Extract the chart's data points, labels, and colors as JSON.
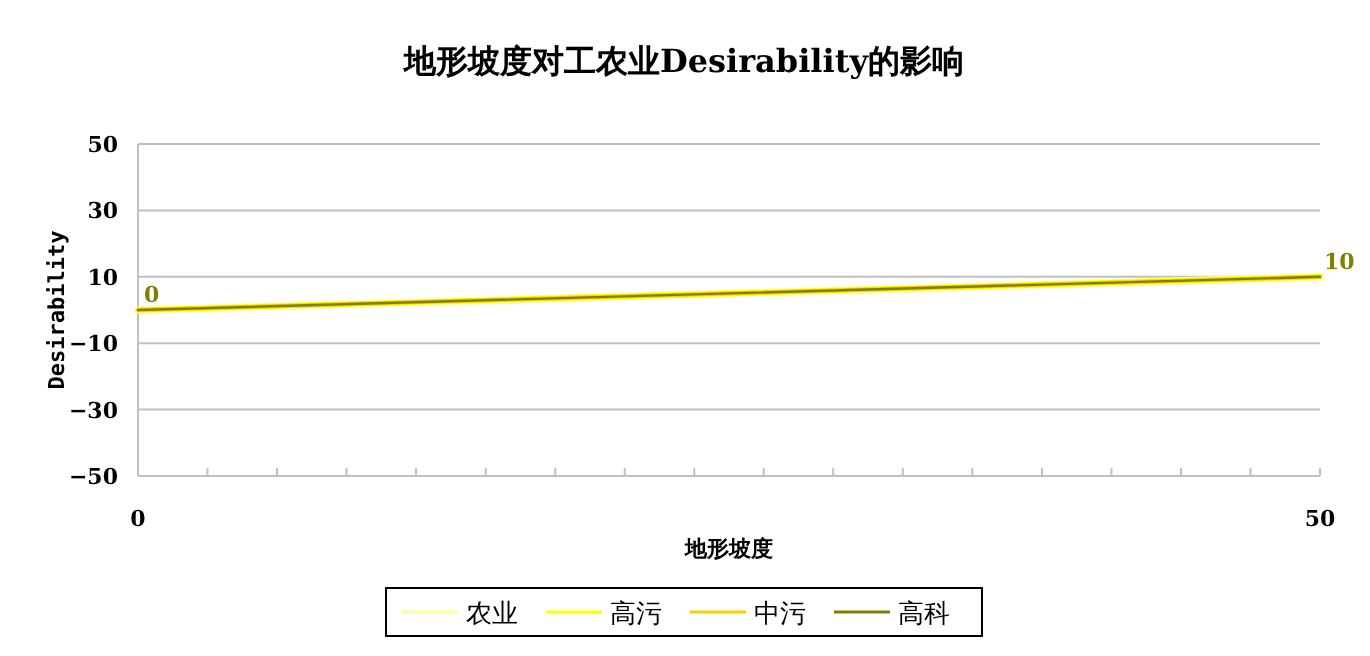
{
  "chart_data": {
    "type": "line",
    "title": "地形坡度对工农业Desirability的影响",
    "xlabel": "地形坡度",
    "ylabel": "Desirability",
    "x": [
      0,
      50
    ],
    "xlim": [
      0,
      50
    ],
    "ylim": [
      -50,
      50
    ],
    "xticks": [
      0,
      {
        "value": 2.94,
        "label": null
      },
      {
        "value": 5.88,
        "label": null
      },
      {
        "value": 8.82,
        "label": null
      },
      {
        "value": 11.76,
        "label": null
      },
      {
        "value": 14.71,
        "label": null
      },
      {
        "value": 17.65,
        "label": null
      },
      {
        "value": 20.59,
        "label": null
      },
      {
        "value": 23.53,
        "label": null
      },
      {
        "value": 26.47,
        "label": null
      },
      {
        "value": 29.41,
        "label": null
      },
      {
        "value": 32.35,
        "label": null
      },
      {
        "value": 35.29,
        "label": null
      },
      {
        "value": 38.24,
        "label": null
      },
      {
        "value": 41.18,
        "label": null
      },
      {
        "value": 44.12,
        "label": null
      },
      {
        "value": 47.06,
        "label": null
      },
      50
    ],
    "yticks": [
      -50,
      -30,
      -10,
      10,
      30,
      50
    ],
    "grid": "y",
    "legend": "bottom",
    "marker": "none",
    "line_style": "solid",
    "series": [
      {
        "name": "农业",
        "color": "#ffff99",
        "values": [
          0,
          10
        ]
      },
      {
        "name": "高污",
        "color": "#ffff00",
        "values": [
          0,
          10
        ]
      },
      {
        "name": "中污",
        "color": "#ffcc00",
        "values": [
          0,
          10
        ]
      },
      {
        "name": "高科",
        "color": "#808000",
        "values": [
          0,
          10
        ],
        "value_labels": [
          "0",
          "10"
        ]
      }
    ]
  }
}
